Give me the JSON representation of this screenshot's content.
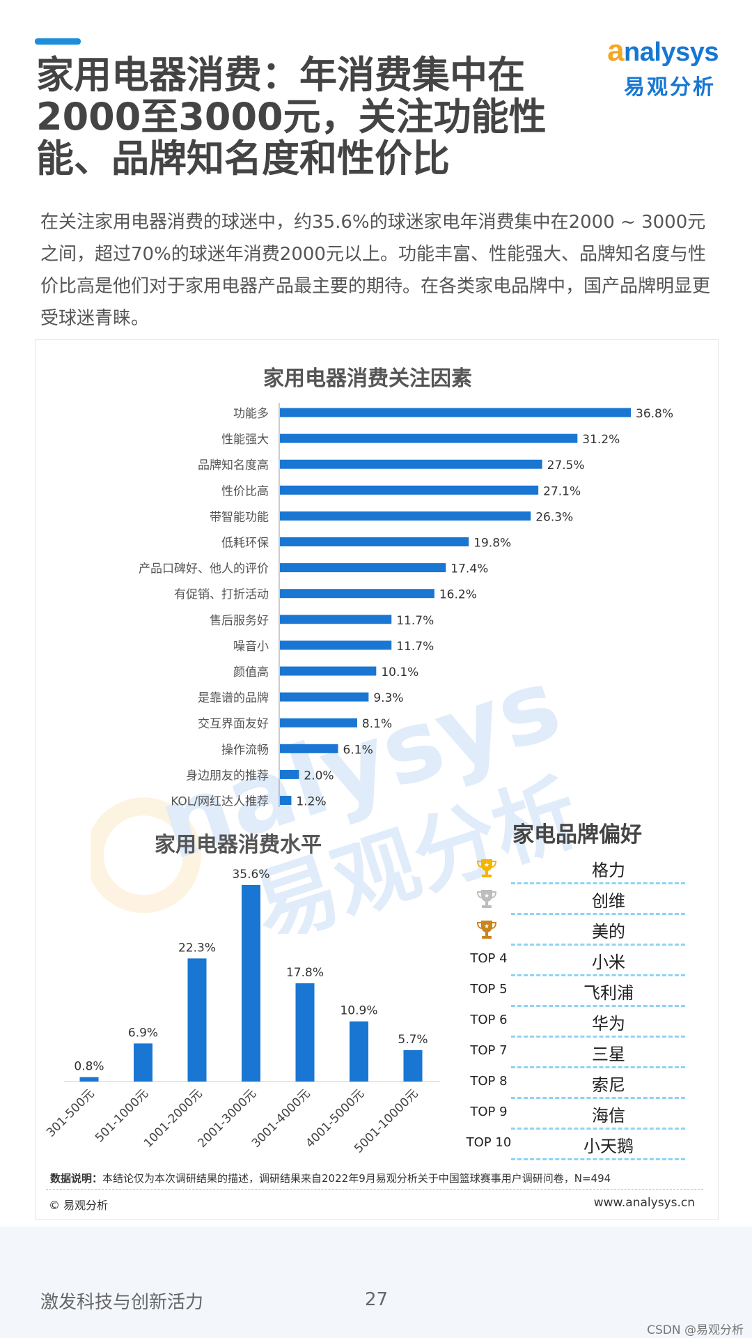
{
  "header": {
    "title": "家用电器消费：年消费集中在2000至3000元，关注功能性能、品牌知名度和性价比",
    "logo_word": "nalysys",
    "logo_letter": "a",
    "logo_cn": "易观分析"
  },
  "description": "在关注家用电器消费的球迷中，约35.6%的球迷家电年消费集中在2000 ~ 3000元之间，超过70%的球迷年消费2000元以上。功能丰富、性能强大、品牌知名度与性价比高是他们对于家用电器产品最主要的期待。在各类家电品牌中，国产品牌明显更受球迷青睐。",
  "chart_data": [
    {
      "type": "bar",
      "orientation": "horizontal",
      "title": "家用电器消费关注因素",
      "categories": [
        "功能多",
        "性能强大",
        "品牌知名度高",
        "性价比高",
        "带智能功能",
        "低耗环保",
        "产品口碑好、他人的评价",
        "有促销、打折活动",
        "售后服务好",
        "噪音小",
        "颜值高",
        "是靠谱的品牌",
        "交互界面友好",
        "操作流畅",
        "身边朋友的推荐",
        "KOL/网红达人推荐"
      ],
      "values": [
        36.8,
        31.2,
        27.5,
        27.1,
        26.3,
        19.8,
        17.4,
        16.2,
        11.7,
        11.7,
        10.1,
        9.3,
        8.1,
        6.1,
        2.0,
        1.2
      ],
      "labels": [
        "36.8%",
        "31.2%",
        "27.5%",
        "27.1%",
        "26.3%",
        "19.8%",
        "17.4%",
        "16.2%",
        "11.7%",
        "11.7%",
        "10.1%",
        "9.3%",
        "8.1%",
        "6.1%",
        "2.0%",
        "1.2%"
      ],
      "unit": "%",
      "color": "#1976d2",
      "grid": false
    },
    {
      "type": "bar",
      "orientation": "vertical",
      "title": "家用电器消费水平",
      "categories": [
        "301-500元",
        "501-1000元",
        "1001-2000元",
        "2001-3000元",
        "3001-4000元",
        "4001-5000元",
        "5001-10000元"
      ],
      "values": [
        0.8,
        6.9,
        22.3,
        35.6,
        17.8,
        10.9,
        5.7
      ],
      "labels": [
        "0.8%",
        "6.9%",
        "22.3%",
        "35.6%",
        "17.8%",
        "10.9%",
        "5.7%"
      ],
      "unit": "%",
      "color": "#1976d2",
      "grid": false
    }
  ],
  "brands": {
    "title": "家电品牌偏好",
    "items": [
      {
        "rank": "",
        "icon": "gold-trophy-icon",
        "icon_color": "#f5b400",
        "name": "格力"
      },
      {
        "rank": "",
        "icon": "silver-trophy-icon",
        "icon_color": "#bdbdbd",
        "name": "创维"
      },
      {
        "rank": "",
        "icon": "bronze-trophy-icon",
        "icon_color": "#c8841f",
        "name": "美的"
      },
      {
        "rank": "TOP 4",
        "icon": "",
        "name": "小米"
      },
      {
        "rank": "TOP 5",
        "icon": "",
        "name": "飞利浦"
      },
      {
        "rank": "TOP 6",
        "icon": "",
        "name": "华为"
      },
      {
        "rank": "TOP 7",
        "icon": "",
        "name": "三星"
      },
      {
        "rank": "TOP 8",
        "icon": "",
        "name": "索尼"
      },
      {
        "rank": "TOP 9",
        "icon": "",
        "name": "海信"
      },
      {
        "rank": "TOP 10",
        "icon": "",
        "name": "小天鹅"
      }
    ]
  },
  "footer": {
    "note_label": "数据说明：",
    "note_text": "本结论仅为本次调研结果的描述，调研结果来自2022年9月易观分析关于中国篮球赛事用户调研问卷，N=494",
    "copyright": "© 易观分析",
    "site": "www.analysys.cn",
    "slogan": "激发科技与创新活力",
    "page": "27",
    "source_tag": "CSDN @易观分析"
  },
  "watermark": {
    "text": "nalysys",
    "cn": "易观分析"
  },
  "colors": {
    "accent": "#1e8ed8",
    "bar": "#1976d2",
    "logo_blue": "#1677d2",
    "logo_orange": "#f5a623",
    "dashed_line": "#8fd3f4"
  }
}
